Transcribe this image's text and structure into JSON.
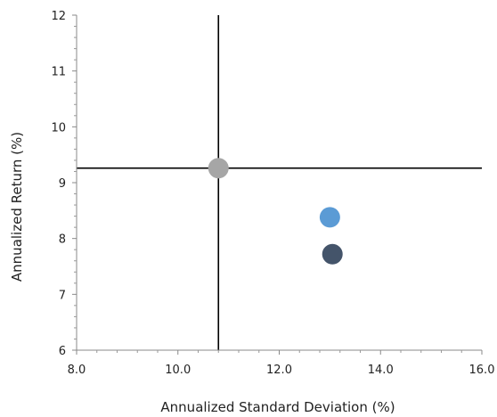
{
  "chart_data": {
    "type": "scatter",
    "title": "",
    "xlabel": "Annualized Standard Deviation (%)",
    "ylabel": "Annualized Return (%)",
    "xlim": [
      8.0,
      16.0
    ],
    "ylim": [
      6,
      12
    ],
    "xticks": [
      8.0,
      10.0,
      12.0,
      14.0,
      16.0
    ],
    "xtick_labels": [
      "8.0",
      "10.0",
      "12.0",
      "14.0",
      "16.0"
    ],
    "yticks": [
      6,
      7,
      8,
      9,
      10,
      11,
      12
    ],
    "ytick_labels": [
      "6",
      "7",
      "8",
      "9",
      "10",
      "11",
      "12"
    ],
    "grid": false,
    "reference_lines": {
      "x": 10.8,
      "y": 9.26,
      "color": "#000000"
    },
    "series": [
      {
        "x": [
          10.8
        ],
        "y": [
          9.26
        ],
        "color": "#a6a6a6"
      },
      {
        "x": [
          13.0
        ],
        "y": [
          8.38
        ],
        "color": "#5b9bd5"
      },
      {
        "x": [
          13.05
        ],
        "y": [
          7.72
        ],
        "color": "#44546a"
      }
    ]
  }
}
